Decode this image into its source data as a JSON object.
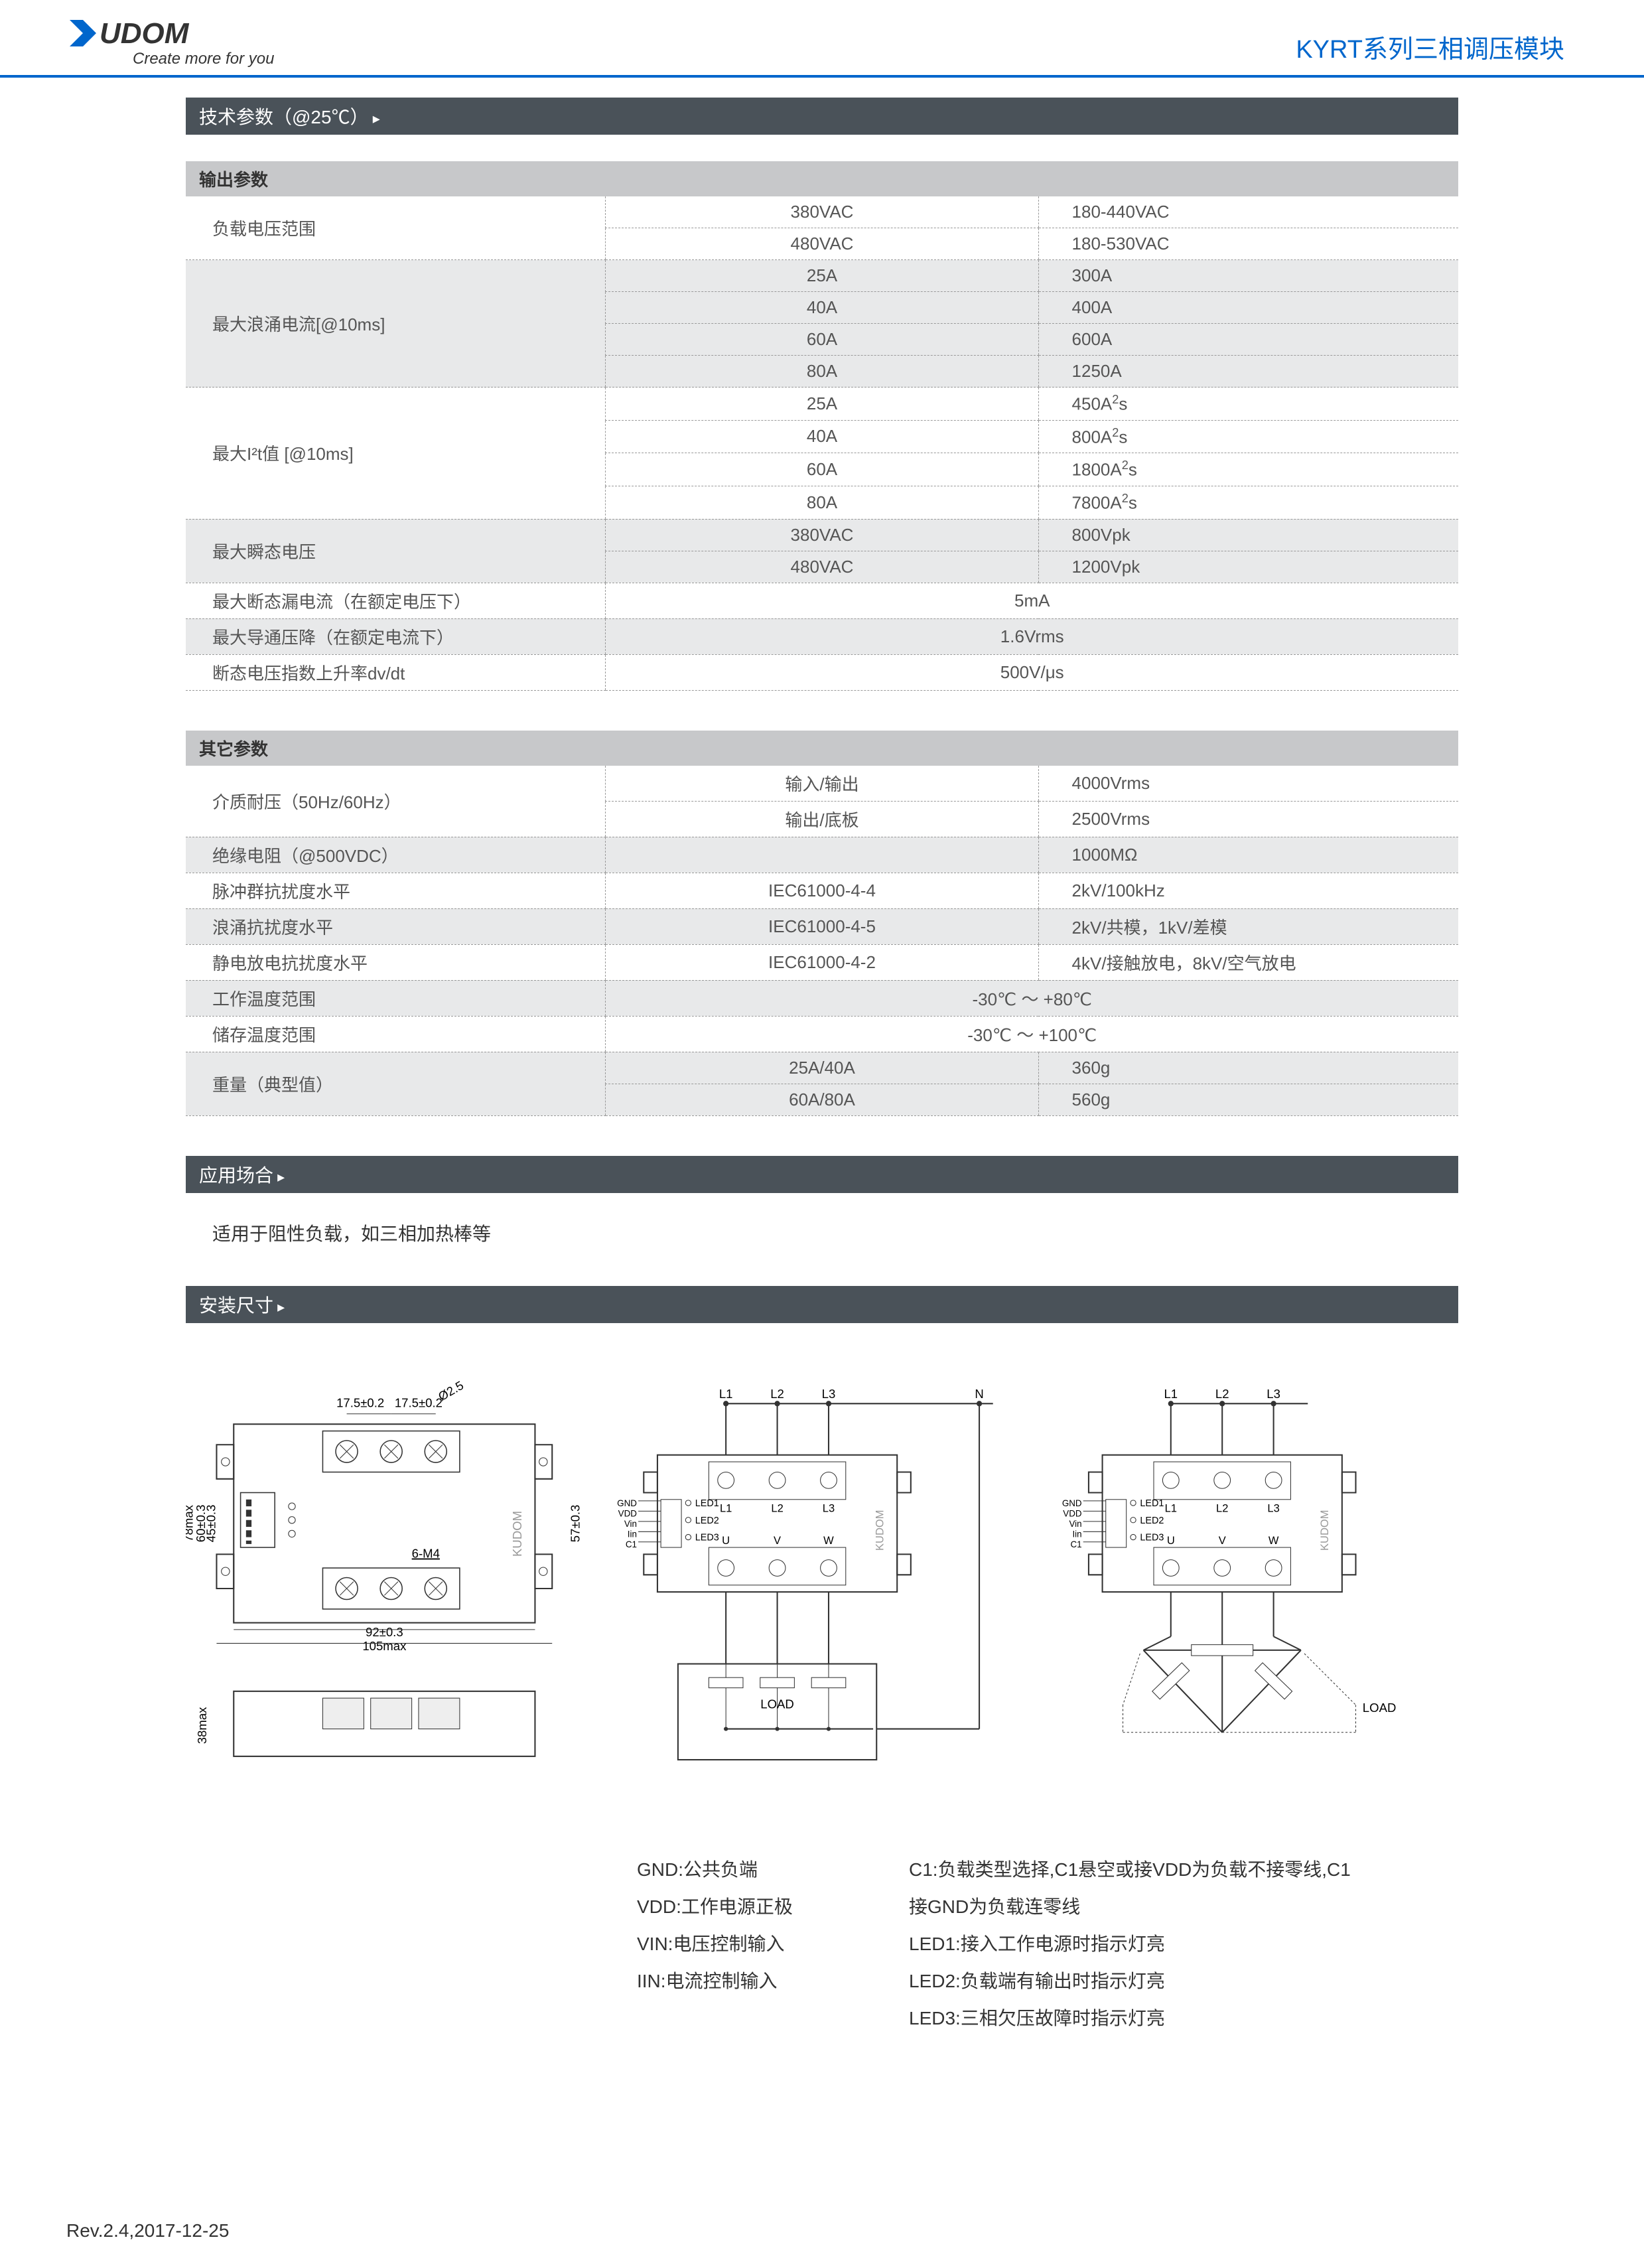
{
  "header": {
    "tagline": "Create more for you",
    "product_title": "KYRT系列三相调压模块"
  },
  "colors": {
    "header_border": "#0066cc",
    "section_bar_bg": "#4a5259",
    "section_bar_text": "#ffffff",
    "table_header_bg": "#c7c8ca",
    "shaded_row_bg": "#e8e9ea",
    "text_color": "#555555",
    "border_color": "#999999"
  },
  "sections": {
    "tech_params_title": "技术参数（@25℃）",
    "applications_title": "应用场合",
    "dimensions_title": "安装尺寸"
  },
  "output_params": {
    "title": "输出参数",
    "rows": [
      {
        "label": "负载电压范围",
        "c2": "380VAC",
        "c3": "180-440VAC",
        "shaded": false,
        "rowspan": 2
      },
      {
        "c2": "480VAC",
        "c3": "180-530VAC",
        "shaded": false
      },
      {
        "label": "最大浪涌电流[@10ms]",
        "c2": "25A",
        "c3": "300A",
        "shaded": true,
        "rowspan": 4
      },
      {
        "c2": "40A",
        "c3": "400A",
        "shaded": true
      },
      {
        "c2": "60A",
        "c3": "600A",
        "shaded": true
      },
      {
        "c2": "80A",
        "c3": "1250A",
        "shaded": true
      },
      {
        "label": "最大I²t值 [@10ms]",
        "c2": "25A",
        "c3": "450A²s",
        "shaded": false,
        "rowspan": 4
      },
      {
        "c2": "40A",
        "c3": "800A²s",
        "shaded": false
      },
      {
        "c2": "60A",
        "c3": "1800A²s",
        "shaded": false
      },
      {
        "c2": "80A",
        "c3": "7800A²s",
        "shaded": false
      },
      {
        "label": "最大瞬态电压",
        "c2": "380VAC",
        "c3": "800Vpk",
        "shaded": true,
        "rowspan": 2
      },
      {
        "c2": "480VAC",
        "c3": "1200Vpk",
        "shaded": true
      },
      {
        "label": "最大断态漏电流（在额定电压下）",
        "merged": "5mA",
        "shaded": false,
        "rowspan": 1
      },
      {
        "label": "最大导通压降（在额定电流下）",
        "merged": "1.6Vrms",
        "shaded": true,
        "rowspan": 1
      },
      {
        "label": "断态电压指数上升率dv/dt",
        "merged": "500V/μs",
        "shaded": false,
        "rowspan": 1
      }
    ]
  },
  "other_params": {
    "title": "其它参数",
    "rows": [
      {
        "label": "介质耐压（50Hz/60Hz）",
        "c2": "输入/输出",
        "c3": "4000Vrms",
        "shaded": false,
        "rowspan": 2
      },
      {
        "c2": "输出/底板",
        "c3": "2500Vrms",
        "shaded": false
      },
      {
        "label": "绝缘电阻（@500VDC）",
        "c2": "",
        "c3": "1000MΩ",
        "shaded": true,
        "rowspan": 1
      },
      {
        "label": "脉冲群抗扰度水平",
        "c2": "IEC61000-4-4",
        "c3": "2kV/100kHz",
        "shaded": false,
        "rowspan": 1
      },
      {
        "label": "浪涌抗扰度水平",
        "c2": "IEC61000-4-5",
        "c3": "2kV/共模，1kV/差模",
        "shaded": true,
        "rowspan": 1
      },
      {
        "label": "静电放电抗扰度水平",
        "c2": "IEC61000-4-2",
        "c3": "4kV/接触放电，8kV/空气放电",
        "shaded": false,
        "rowspan": 1
      },
      {
        "label": "工作温度范围",
        "merged": "-30℃ ～ +80℃",
        "shaded": true,
        "rowspan": 1
      },
      {
        "label": "储存温度范围",
        "merged": "-30℃ ～ +100℃",
        "shaded": false,
        "rowspan": 1
      },
      {
        "label": "重量（典型值）",
        "c2": "25A/40A",
        "c3": "360g",
        "shaded": true,
        "rowspan": 2
      },
      {
        "c2": "60A/80A",
        "c3": "560g",
        "shaded": true
      }
    ]
  },
  "application_text": "适用于阻性负载，如三相加热棒等",
  "pin_definitions": {
    "left": [
      {
        "pin": "GND",
        "desc": ":公共负端"
      },
      {
        "pin": "VDD",
        "desc": ":工作电源正极"
      },
      {
        "pin": "VIN",
        "desc": ":电压控制输入"
      },
      {
        "pin": "IIN",
        "desc": ":电流控制输入"
      }
    ],
    "right": [
      "C1:负载类型选择,C1悬空或接VDD为负载不接零线,C1",
      "接GND为负载连零线",
      "LED1:接入工作电源时指示灯亮",
      "LED2:负载端有输出时指示灯亮",
      "LED3:三相欠压故障时指示灯亮"
    ]
  },
  "diagram_labels": {
    "dim1": "17.5±0.2",
    "dim2": "17.5±0.2",
    "dim3": "Ø2.5",
    "dim4": "78max",
    "dim5": "60±0.3",
    "dim6": "45±0.3",
    "dim7": "57±0.3",
    "dim8": "6-M4",
    "dim9": "92±0.3",
    "dim10": "105max",
    "dim11": "38max",
    "terminals_top": [
      "L1",
      "L2",
      "L3",
      "N"
    ],
    "terminals_top2": [
      "L1",
      "L2",
      "L3"
    ],
    "terminals_in": [
      "GND",
      "VDD",
      "Vin",
      "Iin",
      "C1"
    ],
    "leds": [
      "LED1",
      "LED2",
      "LED3"
    ],
    "terminals_bot_in": [
      "L1",
      "L2",
      "L3"
    ],
    "terminals_bot_out": [
      "U",
      "V",
      "W"
    ],
    "load": "LOAD"
  },
  "footer": "Rev.2.4,2017-12-25"
}
